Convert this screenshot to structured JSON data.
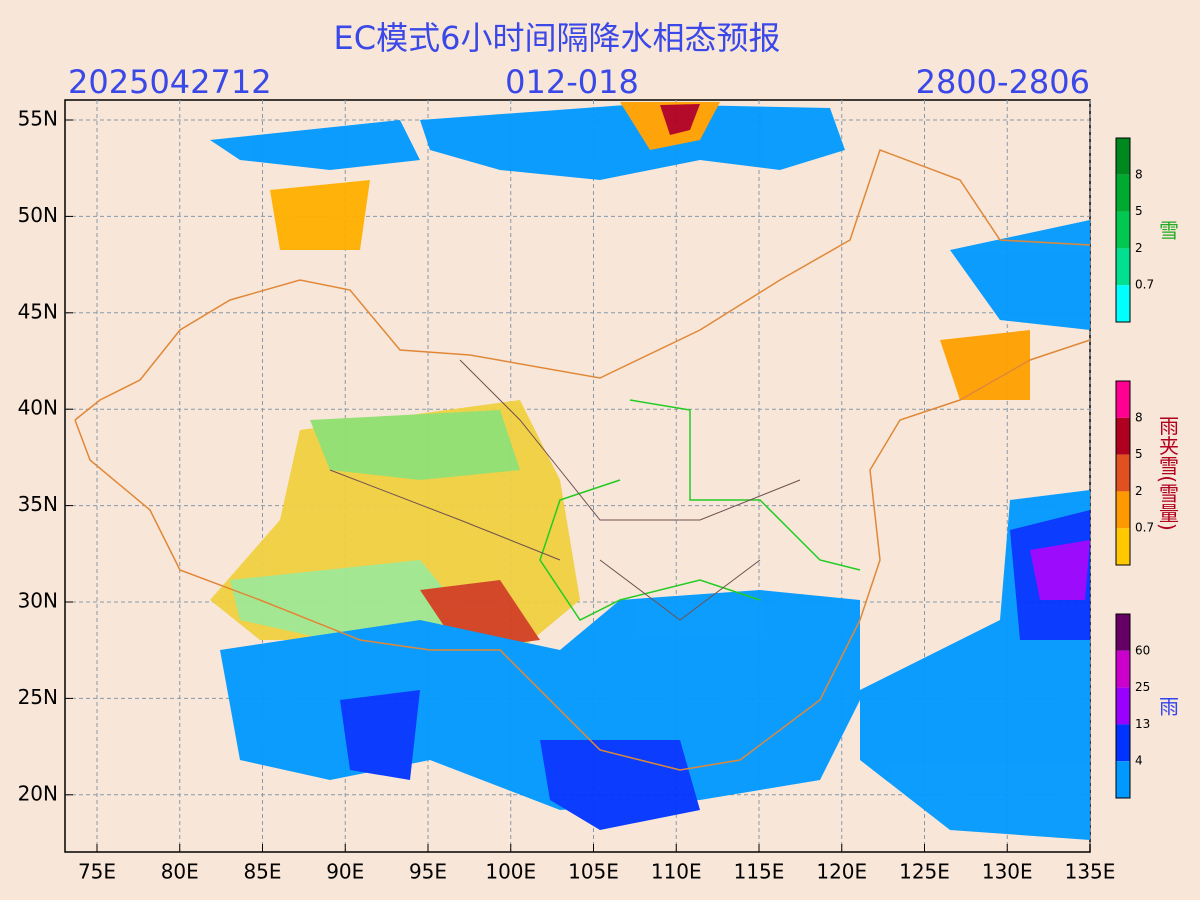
{
  "title": "EC模式6小时间隔降水相态预报",
  "header": {
    "init": "2025042712",
    "lead": "012-018",
    "valid": "2800-2806"
  },
  "map": {
    "lon_ticks": [
      "75E",
      "80E",
      "85E",
      "90E",
      "95E",
      "100E",
      "105E",
      "110E",
      "115E",
      "120E",
      "125E",
      "130E",
      "135E"
    ],
    "lat_ticks": [
      "55N",
      "50N",
      "45N",
      "40N",
      "35N",
      "30N",
      "25N",
      "20N"
    ]
  },
  "legends": [
    {
      "name": "雪",
      "labels": [
        "8",
        "5",
        "2",
        "0.7"
      ]
    },
    {
      "name": "雨夹雪(雪量)",
      "labels": [
        "8",
        "5",
        "2",
        "0.7"
      ]
    },
    {
      "name": "雨",
      "labels": [
        "60",
        "25",
        "13",
        "4"
      ]
    }
  ]
}
